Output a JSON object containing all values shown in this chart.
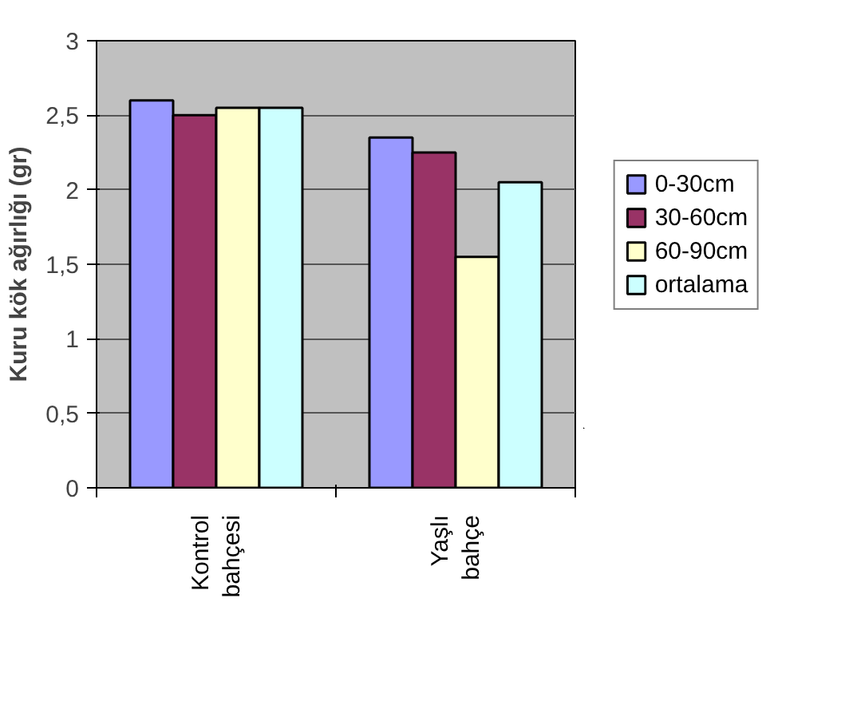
{
  "chart_data": {
    "type": "bar",
    "ylabel": "Kuru kök ağırlığı (gr)",
    "categories": [
      "Kontrol bahçesi",
      "Yaşlı bahçe"
    ],
    "series": [
      {
        "name": "0-30cm",
        "color": "#9999ff",
        "values": [
          2.6,
          2.35
        ]
      },
      {
        "name": "30-60cm",
        "color": "#993366",
        "values": [
          2.5,
          2.25
        ]
      },
      {
        "name": "60-90cm",
        "color": "#ffffcc",
        "values": [
          2.55,
          1.55
        ]
      },
      {
        "name": "ortalama",
        "color": "#ccffff",
        "values": [
          2.55,
          2.05
        ]
      }
    ],
    "ylim": [
      0,
      3
    ],
    "yticks": [
      0,
      {
        "value": 0.5,
        "label": "0,5"
      },
      1,
      {
        "value": 1.5,
        "label": "1,5"
      },
      2,
      {
        "value": 2.5,
        "label": "2,5"
      },
      3
    ],
    "grid": "y",
    "legend": "right"
  }
}
